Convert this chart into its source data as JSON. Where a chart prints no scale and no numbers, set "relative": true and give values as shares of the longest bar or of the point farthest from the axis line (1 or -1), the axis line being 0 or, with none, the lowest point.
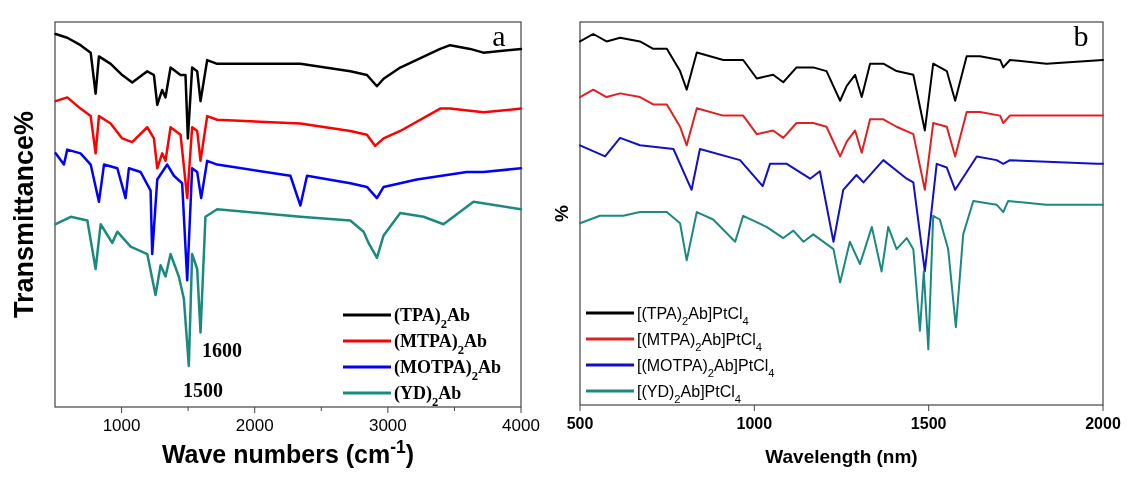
{
  "chart_data": [
    {
      "type": "line",
      "relative": true,
      "xlabel": "Wave numbers (cm$^{-1}$)",
      "ylabel": "Transmittance%",
      "xlim": [
        500,
        4000
      ],
      "xticks": [
        1000,
        {
          "value": 1500,
          "label": null
        },
        2000,
        {
          "value": 2500,
          "label": null
        },
        3000,
        {
          "value": 3500,
          "label": null
        },
        4000
      ],
      "legend": "bottom right",
      "annotations": [
        "a",
        "1600",
        "1500"
      ],
      "series": [
        {
          "name": "(TPA)$_{2}$Ab",
          "color": "#000000",
          "x": [
            505,
            592,
            692,
            768,
            805,
            830,
            918,
            1005,
            1080,
            1193,
            1243,
            1268,
            1305,
            1330,
            1368,
            1443,
            1480,
            1498,
            1530,
            1568,
            1593,
            1643,
            1718,
            2343,
            2718,
            2843,
            2918,
            2968,
            3093,
            3393,
            3468,
            3618,
            3718,
            4000
          ],
          "values": [
            1.0,
            0.99,
            0.97,
            0.95,
            0.84,
            0.94,
            0.92,
            0.89,
            0.87,
            0.9,
            0.89,
            0.81,
            0.85,
            0.83,
            0.91,
            0.89,
            0.89,
            0.72,
            0.91,
            0.9,
            0.82,
            0.93,
            0.92,
            0.92,
            0.9,
            0.89,
            0.86,
            0.88,
            0.91,
            0.96,
            0.97,
            0.96,
            0.95,
            0.96
          ]
        },
        {
          "name": "(MTPA)$_{2}$Ab",
          "color": "#ff0000",
          "x": [
            505,
            592,
            692,
            768,
            805,
            830,
            918,
            1005,
            1080,
            1193,
            1243,
            1268,
            1305,
            1330,
            1368,
            1443,
            1493,
            1530,
            1568,
            1593,
            1643,
            1718,
            2343,
            2718,
            2843,
            2905,
            2968,
            3093,
            3393,
            3468,
            3718,
            4000
          ],
          "values": [
            0.82,
            0.83,
            0.8,
            0.78,
            0.68,
            0.78,
            0.76,
            0.72,
            0.71,
            0.75,
            0.72,
            0.64,
            0.68,
            0.66,
            0.75,
            0.73,
            0.56,
            0.75,
            0.74,
            0.66,
            0.78,
            0.77,
            0.76,
            0.74,
            0.73,
            0.7,
            0.72,
            0.74,
            0.8,
            0.8,
            0.79,
            0.8
          ]
        },
        {
          "name": "(MOTPA)$_{2}$Ab",
          "color": "#0000ff",
          "x": [
            505,
            567,
            592,
            692,
            768,
            830,
            868,
            968,
            1030,
            1055,
            1143,
            1218,
            1230,
            1268,
            1343,
            1393,
            1455,
            1493,
            1530,
            1568,
            1598,
            1643,
            1718,
            2268,
            2343,
            2393,
            2718,
            2843,
            2918,
            2968,
            3218,
            3593,
            3718,
            4000
          ],
          "values": [
            0.68,
            0.65,
            0.69,
            0.68,
            0.65,
            0.55,
            0.65,
            0.64,
            0.56,
            0.64,
            0.63,
            0.58,
            0.41,
            0.61,
            0.65,
            0.62,
            0.6,
            0.34,
            0.64,
            0.63,
            0.56,
            0.66,
            0.65,
            0.62,
            0.54,
            0.62,
            0.6,
            0.59,
            0.56,
            0.59,
            0.61,
            0.63,
            0.63,
            0.64
          ]
        },
        {
          "name": "(YD)$_{2}$Ab",
          "color": "#1a8a80",
          "x": [
            505,
            618,
            743,
            805,
            843,
            930,
            968,
            1068,
            1193,
            1255,
            1293,
            1330,
            1368,
            1430,
            1468,
            1505,
            1530,
            1568,
            1593,
            1630,
            1718,
            2343,
            2718,
            2818,
            2855,
            2918,
            2968,
            3093,
            3268,
            3418,
            3643,
            4000
          ],
          "values": [
            0.49,
            0.51,
            0.5,
            0.37,
            0.49,
            0.44,
            0.47,
            0.43,
            0.41,
            0.3,
            0.38,
            0.35,
            0.41,
            0.35,
            0.29,
            0.11,
            0.41,
            0.37,
            0.2,
            0.51,
            0.53,
            0.51,
            0.5,
            0.47,
            0.44,
            0.4,
            0.46,
            0.52,
            0.51,
            0.49,
            0.55,
            0.53
          ]
        }
      ]
    },
    {
      "type": "line",
      "relative": true,
      "xlabel": "Wavelength (nm)",
      "ylabel": "%",
      "xlim": [
        500,
        2000
      ],
      "xticks": [
        500,
        1000,
        1500,
        2000
      ],
      "legend": "bottom left",
      "annotations": [
        "b"
      ],
      "series": [
        {
          "name": "[(TPA)$_{2}$Ab]PtCl$_{4}$",
          "color": "#000000",
          "x": [
            500,
            538,
            576,
            615,
            672,
            710,
            749,
            787,
            806,
            835,
            911,
            968,
            1007,
            1054,
            1083,
            1121,
            1169,
            1207,
            1246,
            1265,
            1289,
            1308,
            1332,
            1370,
            1408,
            1456,
            1489,
            1513,
            1552,
            1576,
            1609,
            1647,
            1705,
            1714,
            1733,
            1838,
            2000
          ],
          "values": [
            0.98,
            1.0,
            0.98,
            0.99,
            0.98,
            0.96,
            0.96,
            0.9,
            0.85,
            0.95,
            0.93,
            0.93,
            0.88,
            0.89,
            0.87,
            0.91,
            0.91,
            0.9,
            0.82,
            0.86,
            0.89,
            0.83,
            0.92,
            0.92,
            0.9,
            0.89,
            0.74,
            0.92,
            0.9,
            0.82,
            0.94,
            0.94,
            0.93,
            0.91,
            0.93,
            0.92,
            0.93
          ]
        },
        {
          "name": "[(MTPA)$_{2}$Ab]PtCl$_{4}$",
          "color": "#e32020",
          "x": [
            500,
            538,
            576,
            615,
            672,
            710,
            749,
            787,
            806,
            835,
            911,
            968,
            1007,
            1054,
            1083,
            1121,
            1169,
            1207,
            1246,
            1265,
            1289,
            1308,
            1332,
            1370,
            1408,
            1456,
            1489,
            1513,
            1552,
            1576,
            1609,
            1647,
            1705,
            1714,
            1733,
            1838,
            2000
          ],
          "values": [
            0.83,
            0.85,
            0.83,
            0.84,
            0.83,
            0.81,
            0.81,
            0.75,
            0.7,
            0.8,
            0.78,
            0.78,
            0.73,
            0.74,
            0.72,
            0.76,
            0.76,
            0.75,
            0.67,
            0.71,
            0.74,
            0.68,
            0.77,
            0.77,
            0.75,
            0.73,
            0.58,
            0.76,
            0.75,
            0.67,
            0.79,
            0.79,
            0.78,
            0.76,
            0.78,
            0.78,
            0.78
          ]
        },
        {
          "name": "[(MOTPA)$_{2}$Ab]PtCl$_{4}$",
          "color": "#1010c8",
          "x": [
            500,
            572,
            615,
            672,
            768,
            820,
            844,
            959,
            1024,
            1045,
            1093,
            1160,
            1188,
            1227,
            1255,
            1293,
            1313,
            1370,
            1437,
            1456,
            1489,
            1523,
            1552,
            1576,
            1638,
            1695,
            1714,
            1733,
            1982,
            2000
          ],
          "values": [
            0.7,
            0.67,
            0.72,
            0.7,
            0.69,
            0.58,
            0.69,
            0.66,
            0.59,
            0.65,
            0.65,
            0.61,
            0.63,
            0.44,
            0.58,
            0.62,
            0.6,
            0.66,
            0.61,
            0.6,
            0.36,
            0.65,
            0.64,
            0.58,
            0.67,
            0.66,
            0.65,
            0.66,
            0.65,
            0.65
          ]
        },
        {
          "name": "[(YD)$_{2}$Ab]PtCl$_{4}$",
          "color": "#1a8a80",
          "x": [
            500,
            557,
            624,
            672,
            749,
            787,
            806,
            835,
            882,
            945,
            968,
            1035,
            1083,
            1112,
            1141,
            1169,
            1227,
            1246,
            1274,
            1303,
            1337,
            1365,
            1384,
            1408,
            1437,
            1456,
            1475,
            1486,
            1499,
            1513,
            1532,
            1556,
            1578,
            1599,
            1628,
            1695,
            1714,
            1728,
            1838,
            2000
          ],
          "values": [
            0.49,
            0.51,
            0.51,
            0.52,
            0.52,
            0.49,
            0.39,
            0.52,
            0.5,
            0.44,
            0.51,
            0.48,
            0.45,
            0.47,
            0.44,
            0.46,
            0.42,
            0.33,
            0.44,
            0.38,
            0.48,
            0.36,
            0.48,
            0.42,
            0.45,
            0.42,
            0.2,
            0.36,
            0.15,
            0.51,
            0.5,
            0.42,
            0.21,
            0.46,
            0.55,
            0.54,
            0.52,
            0.55,
            0.54,
            0.54
          ]
        }
      ]
    }
  ]
}
